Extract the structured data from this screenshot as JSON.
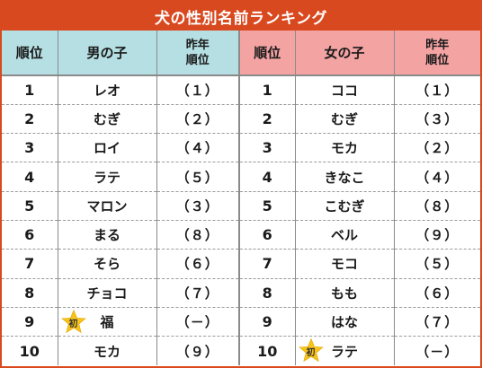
{
  "title": "犬の性別名前ランキング",
  "headers": {
    "rank": "順位",
    "male": "男の子",
    "prev_line1": "昨年",
    "prev_line2": "順位",
    "female": "女の子"
  },
  "badge_label": "初",
  "colors": {
    "title_bg": "#d9491f",
    "male_header": "#b6dfe4",
    "female_header": "#f4a3a3",
    "star": "#f7c31b"
  },
  "rows": [
    {
      "rank": "1",
      "male": "レオ",
      "male_prev": "（１）",
      "female": "ココ",
      "female_prev": "（１）"
    },
    {
      "rank": "2",
      "male": "むぎ",
      "male_prev": "（２）",
      "female": "むぎ",
      "female_prev": "（３）"
    },
    {
      "rank": "3",
      "male": "ロイ",
      "male_prev": "（４）",
      "female": "モカ",
      "female_prev": "（２）"
    },
    {
      "rank": "4",
      "male": "ラテ",
      "male_prev": "（５）",
      "female": "きなこ",
      "female_prev": "（４）"
    },
    {
      "rank": "5",
      "male": "マロン",
      "male_prev": "（３）",
      "female": "こむぎ",
      "female_prev": "（８）"
    },
    {
      "rank": "6",
      "male": "まる",
      "male_prev": "（８）",
      "female": "ベル",
      "female_prev": "（９）"
    },
    {
      "rank": "7",
      "male": "そら",
      "male_prev": "（６）",
      "female": "モコ",
      "female_prev": "（５）"
    },
    {
      "rank": "8",
      "male": "チョコ",
      "male_prev": "（７）",
      "female": "もも",
      "female_prev": "（６）"
    },
    {
      "rank": "9",
      "male": "福",
      "male_prev": "（－）",
      "female": "はな",
      "female_prev": "（７）",
      "male_new": true
    },
    {
      "rank": "10",
      "male": "モカ",
      "male_prev": "（９）",
      "female": "ラテ",
      "female_prev": "（－）",
      "female_new": true
    }
  ]
}
